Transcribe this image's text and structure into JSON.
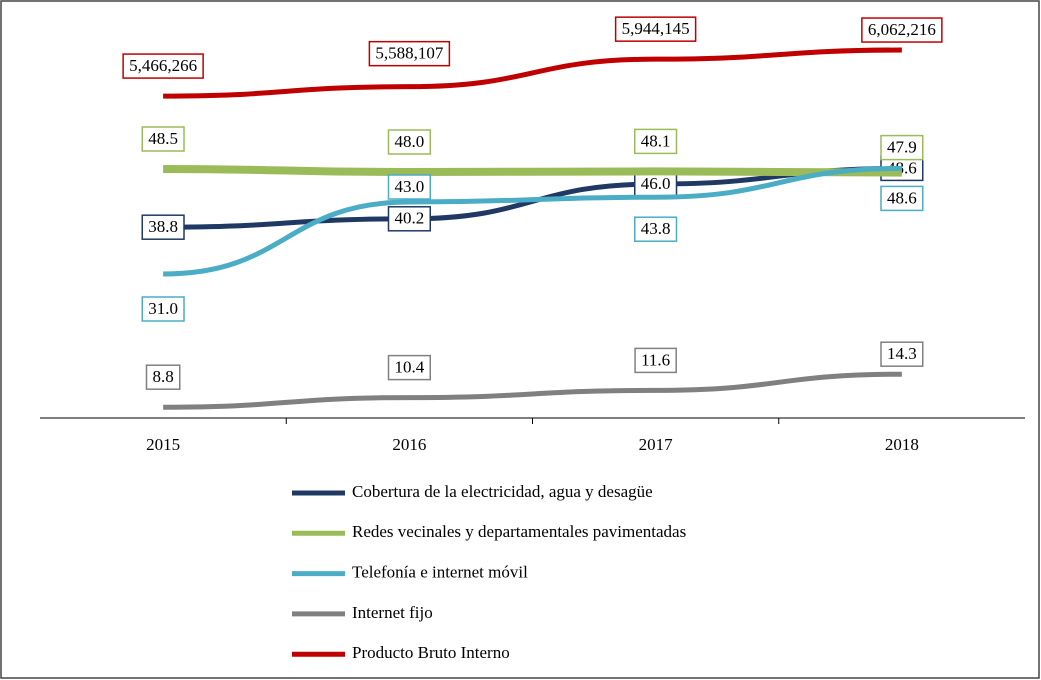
{
  "chart_data": {
    "type": "line",
    "categories": [
      "2015",
      "2016",
      "2017",
      "2018"
    ],
    "ylim": [
      7,
      73
    ],
    "y2lim": [
      1300000,
      6425000
    ],
    "series": [
      {
        "name": "Cobertura de la electricidad, agua y desagüe",
        "color": "#1f3864",
        "values": [
          38.8,
          40.2,
          46.0,
          48.6
        ],
        "value_labels": [
          "38.8",
          "40.2",
          "46.0",
          "48.6"
        ]
      },
      {
        "name": "Redes vecinales y departamentales pavimentadas",
        "color": "#9bbb59",
        "values": [
          48.5,
          48.0,
          48.1,
          47.9
        ],
        "value_labels": [
          "48.5",
          "48.0",
          "48.1",
          "47.9"
        ]
      },
      {
        "name": "Telefonía e internet móvil",
        "color": "#4bacc6",
        "values": [
          31.0,
          43.0,
          43.8,
          48.6
        ],
        "value_labels": [
          "31.0",
          "43.0",
          "43.8",
          "48.6"
        ]
      },
      {
        "name": "Internet fijo",
        "color": "#808080",
        "values": [
          8.8,
          10.4,
          11.6,
          14.3
        ],
        "value_labels": [
          "8.8",
          "10.4",
          "11.6",
          "14.3"
        ]
      },
      {
        "name": "Producto Bruto Interno",
        "color": "#c00000",
        "axis": "y2",
        "values": [
          5466266,
          5588107,
          5944145,
          6062216
        ],
        "value_labels": [
          "5,466,266",
          "5,588,107",
          "5,944,145",
          "6,062,216"
        ]
      }
    ]
  }
}
